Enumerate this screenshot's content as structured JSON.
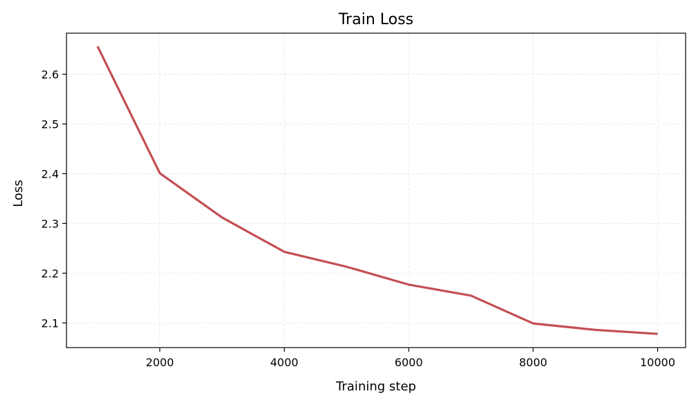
{
  "chart_data": {
    "type": "line",
    "title": "Train Loss",
    "xlabel": "Training step",
    "ylabel": "Loss",
    "xlim": [
      500,
      10450
    ],
    "ylim": [
      2.0505,
      2.6825
    ],
    "xticks": [
      2000,
      4000,
      6000,
      8000,
      10000
    ],
    "yticks": [
      2.1,
      2.2,
      2.3,
      2.4,
      2.5,
      2.6
    ],
    "grid": true,
    "series": [
      {
        "color": "#c44e52",
        "x": [
          1000,
          2000,
          3000,
          4000,
          5000,
          6000,
          7000,
          8000,
          9000,
          10000
        ],
        "y": [
          2.656,
          2.401,
          2.312,
          2.243,
          2.213,
          2.177,
          2.155,
          2.099,
          2.086,
          2.078
        ]
      }
    ]
  }
}
